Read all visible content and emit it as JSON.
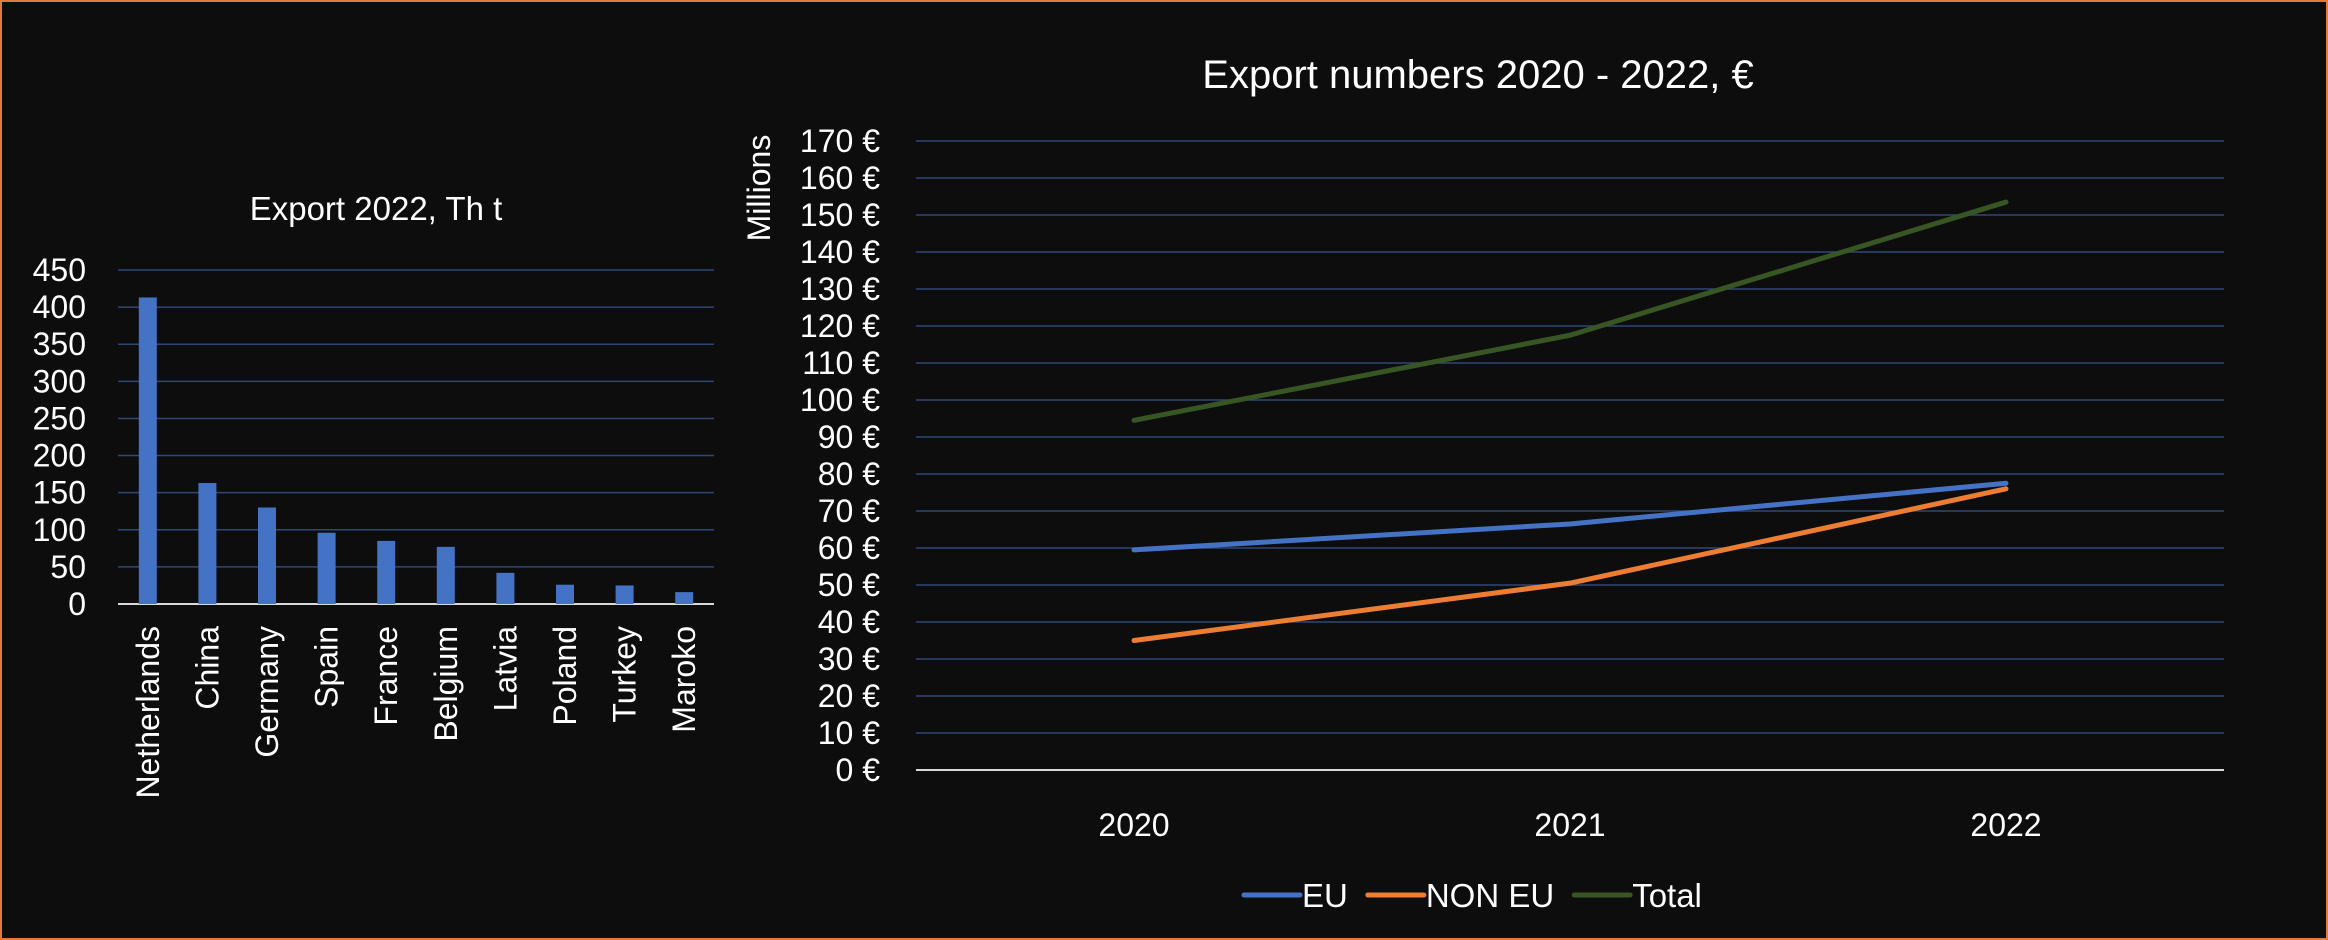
{
  "chart_data": [
    {
      "type": "bar",
      "title": "Export 2022,  Th t",
      "categories": [
        "Netherlands",
        "China",
        "Germany",
        "Spain",
        "France",
        "Belgium",
        "Latvia",
        "Poland",
        "Turkey",
        "Maroko"
      ],
      "values": [
        413,
        163,
        130,
        96,
        85,
        77,
        42,
        26,
        25,
        16
      ],
      "ylim": [
        0,
        450
      ],
      "yticks": [
        "0",
        "50",
        "100",
        "150",
        "200",
        "250",
        "300",
        "350",
        "400",
        "450"
      ],
      "ytick_values": [
        0,
        50,
        100,
        150,
        200,
        250,
        300,
        350,
        400,
        450
      ],
      "bar_color": "#4472c4",
      "grid": true
    },
    {
      "type": "line",
      "title": "Export numbers 2020 - 2022, €",
      "ylabel": "Millions",
      "categories": [
        "2020",
        "2021",
        "2022"
      ],
      "series": [
        {
          "name": "EU",
          "values": [
            59.5,
            66.5,
            77.5
          ],
          "color": "#4472c4"
        },
        {
          "name": "NON EU",
          "values": [
            35,
            50.5,
            76
          ],
          "color": "#ed7d31"
        },
        {
          "name": "Total",
          "values": [
            94.5,
            117.5,
            153.5
          ],
          "color": "#375623"
        }
      ],
      "ylim": [
        0,
        170
      ],
      "yticks": [
        "0 €",
        "10 €",
        "20 €",
        "30 €",
        "40 €",
        "50 €",
        "60 €",
        "70 €",
        "80 €",
        "90 €",
        "100 €",
        "110 €",
        "120 €",
        "130 €",
        "140 €",
        "150 €",
        "160 €",
        "170 €"
      ],
      "ytick_values": [
        0,
        10,
        20,
        30,
        40,
        50,
        60,
        70,
        80,
        90,
        100,
        110,
        120,
        130,
        140,
        150,
        160,
        170
      ],
      "grid": true,
      "legend_position": "bottom"
    }
  ],
  "colors": {
    "background": "#0d0d0d",
    "border": "#e07b39",
    "gridline": "#2f4777",
    "axis": "#d9d9d9",
    "text": "#ffffff"
  }
}
